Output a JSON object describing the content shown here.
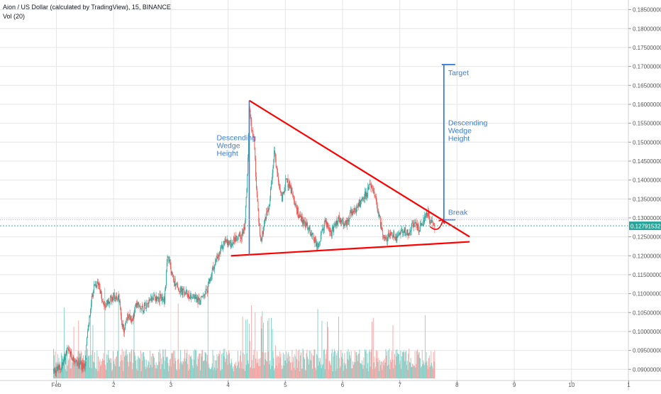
{
  "header": {
    "title": "Aion / US Dollar (calculated by TradingView), 15, BINANCE",
    "volume_label": "Vol (20)"
  },
  "chart_data": {
    "type": "candlestick",
    "symbol": "AION/USD",
    "interval": "15",
    "exchange": "BINANCE",
    "x_ticks": [
      {
        "label": "Feb",
        "day": 1
      },
      {
        "label": "2",
        "day": 2
      },
      {
        "label": "3",
        "day": 3
      },
      {
        "label": "4",
        "day": 4
      },
      {
        "label": "5",
        "day": 5
      },
      {
        "label": "6",
        "day": 6
      },
      {
        "label": "7",
        "day": 7
      },
      {
        "label": "8",
        "day": 8
      },
      {
        "label": "9",
        "day": 9
      },
      {
        "label": "10",
        "day": 10
      },
      {
        "label": "1",
        "day": 11
      }
    ],
    "y_ticks": [
      "0.18500000",
      "0.18000000",
      "0.17500000",
      "0.17000000",
      "0.16500000",
      "0.16000000",
      "0.15500000",
      "0.15000000",
      "0.14500000",
      "0.14000000",
      "0.13500000",
      "0.13000000",
      "0.12500000",
      "0.12000000",
      "0.11500000",
      "0.11000000",
      "0.10500000",
      "0.10000000",
      "0.09500000",
      "0.09000000"
    ],
    "ylim": [
      0.0875,
      0.1885
    ],
    "current_price": "0.12791532",
    "colors": {
      "up": "#26a69a",
      "down": "#ef5350",
      "trendline": "#ff0000",
      "annotation": "#3c7ddb",
      "price_tag": "#26a69a",
      "grid": "#e6e6ea",
      "axis_text": "#555555",
      "vol_up": "#7fcfc6",
      "vol_down": "#f4a5a3"
    },
    "price_path": [
      [
        0.95,
        0.0895
      ],
      [
        1.1,
        0.0905
      ],
      [
        1.2,
        0.095
      ],
      [
        1.35,
        0.092
      ],
      [
        1.5,
        0.0905
      ],
      [
        1.55,
        0.099
      ],
      [
        1.65,
        0.111
      ],
      [
        1.75,
        0.113
      ],
      [
        1.82,
        0.107
      ],
      [
        1.92,
        0.1075
      ],
      [
        2.0,
        0.1095
      ],
      [
        2.1,
        0.109
      ],
      [
        2.18,
        0.1
      ],
      [
        2.26,
        0.104
      ],
      [
        2.34,
        0.103
      ],
      [
        2.42,
        0.108
      ],
      [
        2.52,
        0.106
      ],
      [
        2.62,
        0.1085
      ],
      [
        2.75,
        0.109
      ],
      [
        2.9,
        0.1085
      ],
      [
        2.95,
        0.12
      ],
      [
        3.05,
        0.114
      ],
      [
        3.15,
        0.111
      ],
      [
        3.28,
        0.11
      ],
      [
        3.42,
        0.109
      ],
      [
        3.52,
        0.108
      ],
      [
        3.65,
        0.111
      ],
      [
        3.75,
        0.117
      ],
      [
        3.85,
        0.12
      ],
      [
        3.95,
        0.124
      ],
      [
        4.05,
        0.123
      ],
      [
        4.15,
        0.125
      ],
      [
        4.25,
        0.1255
      ],
      [
        4.3,
        0.128
      ],
      [
        4.35,
        0.142
      ],
      [
        4.38,
        0.16
      ],
      [
        4.42,
        0.153
      ],
      [
        4.47,
        0.149
      ],
      [
        4.52,
        0.134
      ],
      [
        4.58,
        0.124
      ],
      [
        4.65,
        0.129
      ],
      [
        4.73,
        0.134
      ],
      [
        4.82,
        0.148
      ],
      [
        4.88,
        0.14
      ],
      [
        4.95,
        0.135
      ],
      [
        5.02,
        0.14
      ],
      [
        5.1,
        0.138
      ],
      [
        5.18,
        0.133
      ],
      [
        5.28,
        0.13
      ],
      [
        5.38,
        0.128
      ],
      [
        5.5,
        0.125
      ],
      [
        5.58,
        0.122
      ],
      [
        5.7,
        0.129
      ],
      [
        5.82,
        0.126
      ],
      [
        5.95,
        0.13
      ],
      [
        6.05,
        0.128
      ],
      [
        6.15,
        0.131
      ],
      [
        6.25,
        0.132
      ],
      [
        6.35,
        0.135
      ],
      [
        6.45,
        0.137
      ],
      [
        6.5,
        0.139
      ],
      [
        6.6,
        0.134
      ],
      [
        6.68,
        0.128
      ],
      [
        6.75,
        0.124
      ],
      [
        6.85,
        0.126
      ],
      [
        6.95,
        0.125
      ],
      [
        7.05,
        0.127
      ],
      [
        7.15,
        0.126
      ],
      [
        7.25,
        0.1285
      ],
      [
        7.35,
        0.127
      ],
      [
        7.42,
        0.1295
      ],
      [
        7.5,
        0.1315
      ],
      [
        7.55,
        0.129
      ],
      [
        7.62,
        0.128
      ]
    ],
    "wedge": {
      "upper_line": [
        [
          4.37,
          0.161
        ],
        [
          8.22,
          0.125
        ]
      ],
      "lower_line": [
        [
          4.05,
          0.12
        ],
        [
          8.22,
          0.1237
        ]
      ]
    },
    "annotations": {
      "wedge_label": "Descending Wedge Height",
      "wedge_label_lines": [
        "Descending",
        "Wedge",
        "Height"
      ],
      "wedge_height": [
        4.37,
        0.12,
        0.161
      ],
      "projection_label_lines": [
        "Descending",
        "Wedge",
        "Height"
      ],
      "projection": [
        7.77,
        0.1295,
        0.1705
      ],
      "target_label": "Target",
      "break_label": "Break",
      "break_price": 0.1295
    }
  }
}
